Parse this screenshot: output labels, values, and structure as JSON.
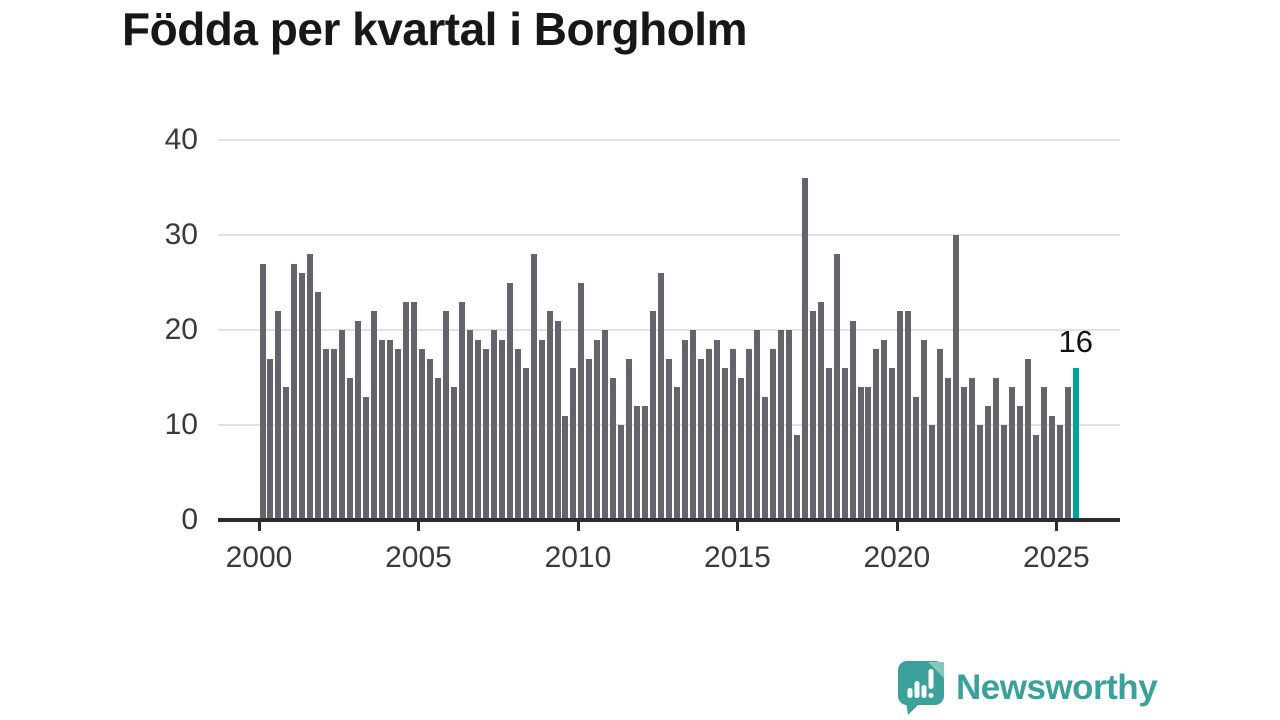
{
  "title": "Födda per kvartal i Borgholm",
  "annotation": {
    "label": "16"
  },
  "branding": {
    "name": "Newsworthy",
    "icon": "newsworthy-speech-bubble-chart-icon"
  },
  "colors": {
    "bar": "#65646c",
    "highlight": "#00a39a",
    "gridline": "#e2e2e2",
    "axis": "#2b2b2b",
    "tick_label": "#3a3a3a",
    "title": "#171717",
    "brand_teal": "#3ba19a",
    "brand_teal_light": "#8ac6c0"
  },
  "chart_data": {
    "type": "bar",
    "title": "Födda per kvartal i Borgholm",
    "xlabel": "",
    "ylabel": "",
    "ylim": [
      0,
      40
    ],
    "yticks": [
      0,
      10,
      20,
      30,
      40
    ],
    "xticks": [
      2000,
      2005,
      2010,
      2015,
      2020,
      2025
    ],
    "grid": "horizontal",
    "legend": "none",
    "highlight_index": 102,
    "highlight_value_label": "16",
    "categories": [
      "2000 Q1",
      "2000 Q2",
      "2000 Q3",
      "2000 Q4",
      "2001 Q1",
      "2001 Q2",
      "2001 Q3",
      "2001 Q4",
      "2002 Q1",
      "2002 Q2",
      "2002 Q3",
      "2002 Q4",
      "2003 Q1",
      "2003 Q2",
      "2003 Q3",
      "2003 Q4",
      "2004 Q1",
      "2004 Q2",
      "2004 Q3",
      "2004 Q4",
      "2005 Q1",
      "2005 Q2",
      "2005 Q3",
      "2005 Q4",
      "2006 Q1",
      "2006 Q2",
      "2006 Q3",
      "2006 Q4",
      "2007 Q1",
      "2007 Q2",
      "2007 Q3",
      "2007 Q4",
      "2008 Q1",
      "2008 Q2",
      "2008 Q3",
      "2008 Q4",
      "2009 Q1",
      "2009 Q2",
      "2009 Q3",
      "2009 Q4",
      "2010 Q1",
      "2010 Q2",
      "2010 Q3",
      "2010 Q4",
      "2011 Q1",
      "2011 Q2",
      "2011 Q3",
      "2011 Q4",
      "2012 Q1",
      "2012 Q2",
      "2012 Q3",
      "2012 Q4",
      "2013 Q1",
      "2013 Q2",
      "2013 Q3",
      "2013 Q4",
      "2014 Q1",
      "2014 Q2",
      "2014 Q3",
      "2014 Q4",
      "2015 Q1",
      "2015 Q2",
      "2015 Q3",
      "2015 Q4",
      "2016 Q1",
      "2016 Q2",
      "2016 Q3",
      "2016 Q4",
      "2017 Q1",
      "2017 Q2",
      "2017 Q3",
      "2017 Q4",
      "2018 Q1",
      "2018 Q2",
      "2018 Q3",
      "2018 Q4",
      "2019 Q1",
      "2019 Q2",
      "2019 Q3",
      "2019 Q4",
      "2020 Q1",
      "2020 Q2",
      "2020 Q3",
      "2020 Q4",
      "2021 Q1",
      "2021 Q2",
      "2021 Q3",
      "2021 Q4",
      "2022 Q1",
      "2022 Q2",
      "2022 Q3",
      "2022 Q4",
      "2023 Q1",
      "2023 Q2",
      "2023 Q3",
      "2023 Q4",
      "2024 Q1",
      "2024 Q2",
      "2024 Q3",
      "2024 Q4",
      "2025 Q1",
      "2025 Q2",
      "2025 Q3"
    ],
    "values": [
      27,
      17,
      22,
      14,
      27,
      26,
      28,
      24,
      18,
      18,
      20,
      15,
      21,
      13,
      22,
      19,
      19,
      18,
      23,
      23,
      18,
      17,
      15,
      22,
      14,
      23,
      20,
      19,
      18,
      20,
      19,
      25,
      18,
      16,
      28,
      19,
      22,
      21,
      11,
      16,
      25,
      17,
      19,
      20,
      15,
      10,
      17,
      12,
      12,
      22,
      26,
      17,
      14,
      19,
      20,
      17,
      18,
      19,
      16,
      18,
      15,
      18,
      20,
      13,
      18,
      20,
      20,
      9,
      36,
      22,
      23,
      16,
      28,
      16,
      21,
      14,
      14,
      18,
      19,
      16,
      22,
      22,
      13,
      19,
      10,
      18,
      15,
      30,
      14,
      15,
      10,
      12,
      15,
      10,
      14,
      12,
      17,
      9,
      14,
      11,
      10,
      14,
      16
    ]
  }
}
